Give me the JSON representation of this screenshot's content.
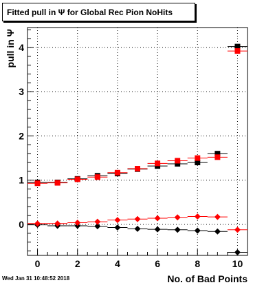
{
  "header": {
    "title": "Fitted pull in Ψ  for Global Rec Pion NoHits"
  },
  "footer": {
    "timestamp": "Wed Jan 31 10:48:52 2018"
  },
  "chart_data": {
    "type": "scatter",
    "title": "Fitted pull in Ψ  for Global Rec Pion NoHits",
    "xlabel": "No. of Bad Points",
    "ylabel": "pull in Ψ",
    "xlim": [
      -0.5,
      10.5
    ],
    "ylim": [
      -0.7,
      4.45
    ],
    "xticks": [
      0,
      2,
      4,
      6,
      8,
      10
    ],
    "yticks": [
      0,
      1,
      2,
      3,
      4
    ],
    "grid": true,
    "legend": "none",
    "x_error": 0.5,
    "series": [
      {
        "marker": "square",
        "color": "#000000",
        "x": [
          0,
          1,
          2,
          3,
          4,
          5,
          6,
          7,
          8,
          9,
          10
        ],
        "y": [
          0.95,
          0.95,
          1.03,
          1.1,
          1.15,
          1.25,
          1.32,
          1.37,
          1.4,
          1.6,
          4.02
        ]
      },
      {
        "marker": "square",
        "color": "#ff0000",
        "x": [
          0,
          1,
          2,
          3,
          4,
          5,
          6,
          7,
          8,
          9,
          10
        ],
        "y": [
          0.93,
          0.94,
          1.02,
          1.07,
          1.17,
          1.26,
          1.38,
          1.44,
          1.5,
          1.52,
          3.92
        ]
      },
      {
        "marker": "diamond",
        "color": "#000000",
        "x": [
          0,
          1,
          2,
          3,
          4,
          5,
          6,
          7,
          8,
          9,
          10
        ],
        "y": [
          -0.01,
          -0.03,
          -0.03,
          -0.04,
          -0.07,
          -0.1,
          -0.11,
          -0.12,
          -0.14,
          -0.16,
          -0.63
        ]
      },
      {
        "marker": "diamond",
        "color": "#ff0000",
        "x": [
          0,
          1,
          2,
          3,
          4,
          5,
          6,
          7,
          8,
          9,
          10
        ],
        "y": [
          0.02,
          0.02,
          0.04,
          0.06,
          0.1,
          0.12,
          0.14,
          0.16,
          0.18,
          0.17,
          -0.12
        ]
      }
    ]
  }
}
